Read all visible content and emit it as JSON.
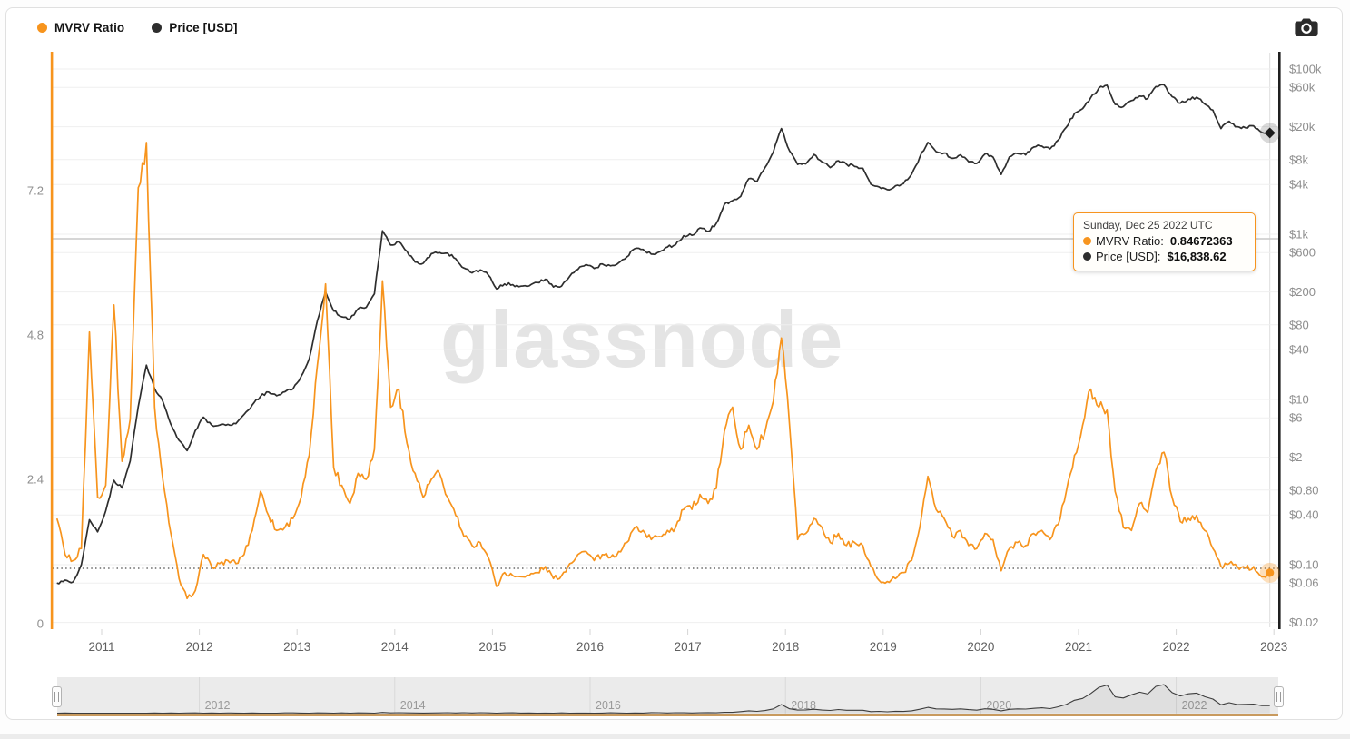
{
  "watermark": "glassnode",
  "colors": {
    "accent_orange": "#F7941D",
    "series_black": "#2E2E2E",
    "grid": "#EFEFEF",
    "axis_label": "#8E8E8E",
    "year_label": "#5f5f5f"
  },
  "legend": {
    "items": [
      {
        "label": "MVRV Ratio",
        "color": "#F7941D"
      },
      {
        "label": "Price [USD]",
        "color": "#2E2E2E"
      }
    ]
  },
  "toolbar": {
    "camera_icon": "camera"
  },
  "tooltip": {
    "date": "Sunday, Dec 25 2022 UTC",
    "rows": [
      {
        "label": "MVRV Ratio:",
        "value": "0.84672363",
        "color": "#F7941D"
      },
      {
        "label": "Price [USD]:",
        "value": "$16,838.62",
        "color": "#2E2E2E"
      }
    ]
  },
  "chart_data": {
    "type": "line",
    "x_axis": {
      "tick_labels": [
        "2011",
        "2012",
        "2013",
        "2014",
        "2015",
        "2016",
        "2017",
        "2018",
        "2019",
        "2020",
        "2021",
        "2022",
        "2023"
      ]
    },
    "left_axis": {
      "name": "MVRV Ratio",
      "scale": "linear",
      "range": [
        0,
        9.5
      ],
      "ticks": [
        {
          "label": "7.2",
          "value": 7.2
        },
        {
          "label": "4.8",
          "value": 4.8
        },
        {
          "label": "2.4",
          "value": 2.4
        },
        {
          "label": "0",
          "value": 0
        }
      ]
    },
    "right_axis": {
      "name": "Price [USD]",
      "scale": "log",
      "range": [
        0.0175,
        157000
      ],
      "ticks": [
        {
          "label": "$100k",
          "value": 100000
        },
        {
          "label": "$60k",
          "value": 60000
        },
        {
          "label": "$20k",
          "value": 20000
        },
        {
          "label": "$8k",
          "value": 8000
        },
        {
          "label": "$4k",
          "value": 4000
        },
        {
          "label": "$1k",
          "value": 1000
        },
        {
          "label": "$600",
          "value": 600
        },
        {
          "label": "$200",
          "value": 200
        },
        {
          "label": "$80",
          "value": 80
        },
        {
          "label": "$40",
          "value": 40
        },
        {
          "label": "$10",
          "value": 10
        },
        {
          "label": "$6",
          "value": 6
        },
        {
          "label": "$2",
          "value": 2
        },
        {
          "label": "$0.80",
          "value": 0.8
        },
        {
          "label": "$0.40",
          "value": 0.4
        },
        {
          "label": "$0.10",
          "value": 0.1
        },
        {
          "label": "$0.06",
          "value": 0.06
        },
        {
          "label": "$0.02",
          "value": 0.02
        }
      ]
    },
    "reference_lines": [
      {
        "axis": "left",
        "value": 6.4,
        "style": "solid"
      },
      {
        "axis": "left",
        "value": 0.92,
        "style": "dotted"
      }
    ],
    "sampling": {
      "start": "2010-07",
      "interval": "monthly",
      "points": 150
    },
    "series": [
      {
        "name": "MVRV Ratio",
        "axis": "left",
        "color": "#F7941D",
        "end_marker": "circle",
        "values": [
          1.75,
          1.15,
          1.05,
          1.25,
          4.85,
          2.1,
          2.3,
          5.3,
          2.7,
          3.4,
          7.25,
          8.0,
          3.6,
          2.4,
          1.5,
          0.75,
          0.42,
          0.55,
          1.15,
          0.95,
          1.0,
          1.05,
          1.0,
          1.15,
          1.55,
          2.2,
          1.8,
          1.55,
          1.6,
          1.75,
          2.1,
          2.8,
          4.3,
          5.65,
          2.6,
          2.3,
          2.0,
          2.5,
          2.4,
          2.9,
          5.7,
          3.6,
          3.9,
          3.0,
          2.5,
          2.1,
          2.4,
          2.5,
          2.1,
          1.8,
          1.45,
          1.3,
          1.35,
          1.1,
          0.62,
          0.85,
          0.8,
          0.78,
          0.8,
          0.85,
          0.95,
          0.75,
          0.8,
          1.0,
          1.15,
          1.2,
          1.05,
          1.15,
          1.1,
          1.2,
          1.35,
          1.6,
          1.55,
          1.4,
          1.45,
          1.55,
          1.6,
          1.9,
          1.9,
          2.15,
          2.0,
          2.25,
          3.2,
          3.6,
          2.9,
          3.3,
          2.9,
          3.2,
          3.7,
          4.75,
          3.3,
          1.4,
          1.5,
          1.75,
          1.6,
          1.35,
          1.5,
          1.3,
          1.35,
          1.3,
          0.95,
          0.72,
          0.7,
          0.75,
          0.85,
          1.05,
          1.6,
          2.45,
          1.9,
          1.75,
          1.45,
          1.55,
          1.3,
          1.25,
          1.5,
          1.4,
          0.88,
          1.25,
          1.35,
          1.3,
          1.5,
          1.55,
          1.4,
          1.65,
          2.2,
          2.8,
          3.3,
          3.9,
          3.6,
          3.55,
          2.2,
          1.6,
          1.55,
          2.0,
          1.85,
          2.55,
          2.85,
          2.1,
          1.7,
          1.75,
          1.8,
          1.55,
          1.25,
          0.95,
          1.0,
          0.95,
          0.92,
          0.95,
          0.78,
          0.84672363
        ]
      },
      {
        "name": "Price [USD]",
        "axis": "right",
        "color": "#2E2E2E",
        "end_marker": "diamond",
        "values": [
          0.06,
          0.065,
          0.062,
          0.1,
          0.35,
          0.25,
          0.45,
          1.05,
          0.85,
          1.8,
          8.2,
          26,
          13.5,
          9.5,
          5.0,
          3.2,
          2.4,
          4.2,
          6.1,
          4.9,
          4.9,
          5.0,
          5.1,
          6.6,
          8.6,
          10.9,
          12.3,
          11.1,
          12.4,
          13.4,
          19,
          31,
          90,
          200,
          118,
          100,
          95,
          125,
          130,
          190,
          1100,
          740,
          810,
          620,
          460,
          445,
          580,
          600,
          590,
          505,
          390,
          340,
          370,
          320,
          218,
          250,
          245,
          235,
          237,
          260,
          285,
          230,
          236,
          310,
          375,
          430,
          385,
          437,
          415,
          450,
          530,
          670,
          655,
          575,
          610,
          700,
          745,
          960,
          970,
          1190,
          1080,
          1350,
          2300,
          2550,
          2870,
          4700,
          4340,
          6450,
          9900,
          19000,
          10200,
          7000,
          7100,
          9250,
          7500,
          6400,
          7750,
          7030,
          6600,
          6300,
          4020,
          3740,
          3460,
          3850,
          4100,
          5320,
          8550,
          12900,
          10000,
          9600,
          8300,
          9150,
          7550,
          7200,
          9350,
          8600,
          5300,
          8620,
          9450,
          9140,
          11350,
          11650,
          10780,
          13800,
          19700,
          29000,
          33100,
          45200,
          58900,
          63500,
          37300,
          35000,
          41500,
          47100,
          43800,
          61300,
          64400,
          46200,
          38500,
          43200,
          45500,
          37700,
          31800,
          19000,
          23300,
          20000,
          19400,
          20500,
          17100,
          16838.62
        ]
      }
    ],
    "navigator": {
      "year_labels": [
        "2012",
        "2014",
        "2016",
        "2018",
        "2020",
        "2022"
      ]
    }
  }
}
